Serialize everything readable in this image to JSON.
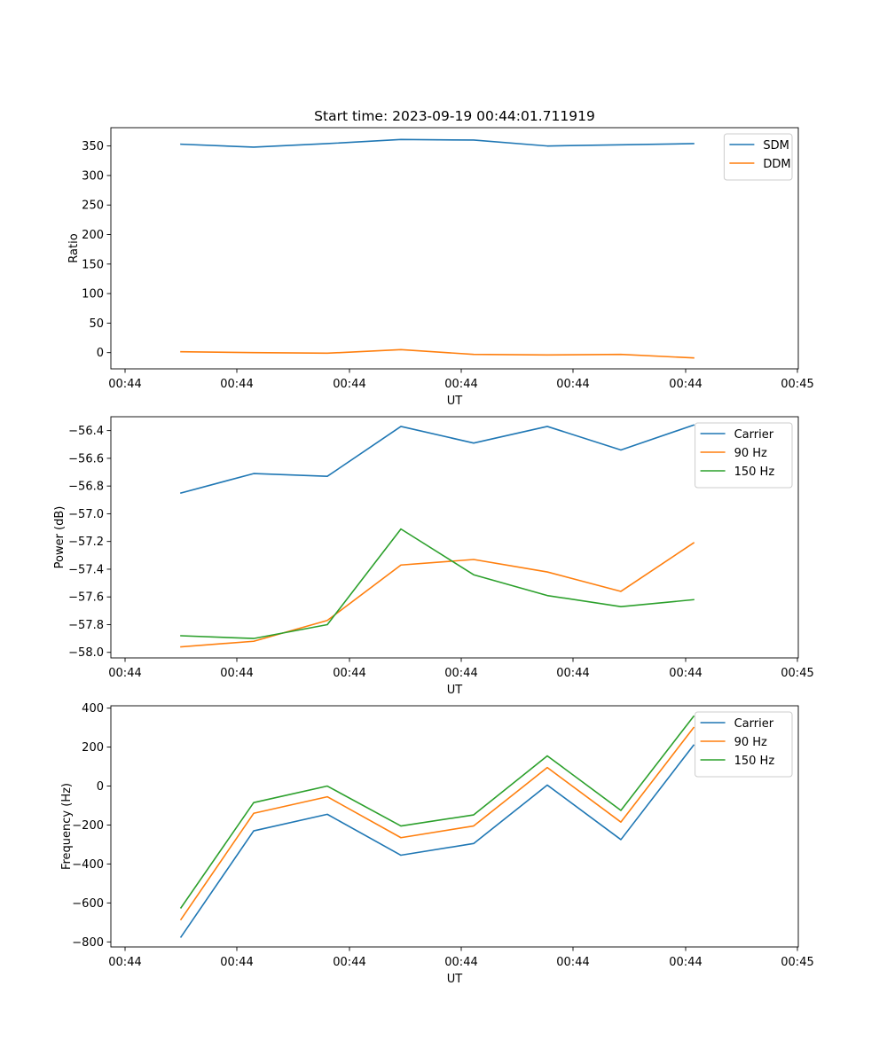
{
  "figure": {
    "title": "Start time: 2023-09-19 00:44:01.711919"
  },
  "chart_data": [
    {
      "type": "line",
      "title": "Start time: 2023-09-19 00:44:01.711919",
      "xlabel": "UT",
      "ylabel": "Ratio",
      "x_ticks": [
        "00:44",
        "00:44",
        "00:44",
        "00:44",
        "00:44",
        "00:44",
        "00:45"
      ],
      "y_ticks": [
        0,
        50,
        100,
        150,
        200,
        250,
        300,
        350
      ],
      "ylim": [
        -27.5,
        381
      ],
      "legend_position": "top-right",
      "series": [
        {
          "name": "SDM",
          "color": "#1f77b4",
          "values": [
            353,
            348,
            354,
            361,
            360,
            350,
            352,
            354
          ]
        },
        {
          "name": "DDM",
          "color": "#ff7f0e",
          "values": [
            1.5,
            0,
            -1,
            5,
            -3,
            -4,
            -3,
            -9
          ]
        }
      ]
    },
    {
      "type": "line",
      "title": "",
      "xlabel": "UT",
      "ylabel": "Power (dB)",
      "x_ticks": [
        "00:44",
        "00:44",
        "00:44",
        "00:44",
        "00:44",
        "00:44",
        "00:45"
      ],
      "y_ticks": [
        "-58.0",
        "-57.8",
        "-57.6",
        "-57.4",
        "-57.2",
        "-57.0",
        "-56.8",
        "-56.6",
        "-56.4"
      ],
      "ylim": [
        -58.04,
        -56.3
      ],
      "legend_position": "top-right",
      "series": [
        {
          "name": "Carrier",
          "color": "#1f77b4",
          "values": [
            -56.85,
            -56.71,
            -56.73,
            -56.37,
            -56.49,
            -56.37,
            -56.54,
            -56.36
          ]
        },
        {
          "name": "90 Hz",
          "color": "#ff7f0e",
          "values": [
            -57.96,
            -57.92,
            -57.77,
            -57.37,
            -57.33,
            -57.42,
            -57.56,
            -57.21
          ]
        },
        {
          "name": "150 Hz",
          "color": "#2ca02c",
          "values": [
            -57.88,
            -57.9,
            -57.8,
            -57.11,
            -57.44,
            -57.59,
            -57.67,
            -57.62
          ]
        }
      ]
    },
    {
      "type": "line",
      "title": "",
      "xlabel": "UT",
      "ylabel": "Frequency (Hz)",
      "x_ticks": [
        "00:44",
        "00:44",
        "00:44",
        "00:44",
        "00:44",
        "00:44",
        "00:45"
      ],
      "y_ticks": [
        -800,
        -600,
        -400,
        -200,
        0,
        200,
        400
      ],
      "ylim": [
        -826,
        412
      ],
      "legend_position": "top-right",
      "series": [
        {
          "name": "Carrier",
          "color": "#1f77b4",
          "values": [
            -775,
            -230,
            -145,
            -355,
            -295,
            5,
            -275,
            210
          ]
        },
        {
          "name": "90 Hz",
          "color": "#ff7f0e",
          "values": [
            -685,
            -140,
            -55,
            -265,
            -205,
            95,
            -185,
            300
          ]
        },
        {
          "name": "150 Hz",
          "color": "#2ca02c",
          "values": [
            -625,
            -85,
            0,
            -205,
            -148,
            155,
            -125,
            358
          ]
        }
      ]
    }
  ]
}
